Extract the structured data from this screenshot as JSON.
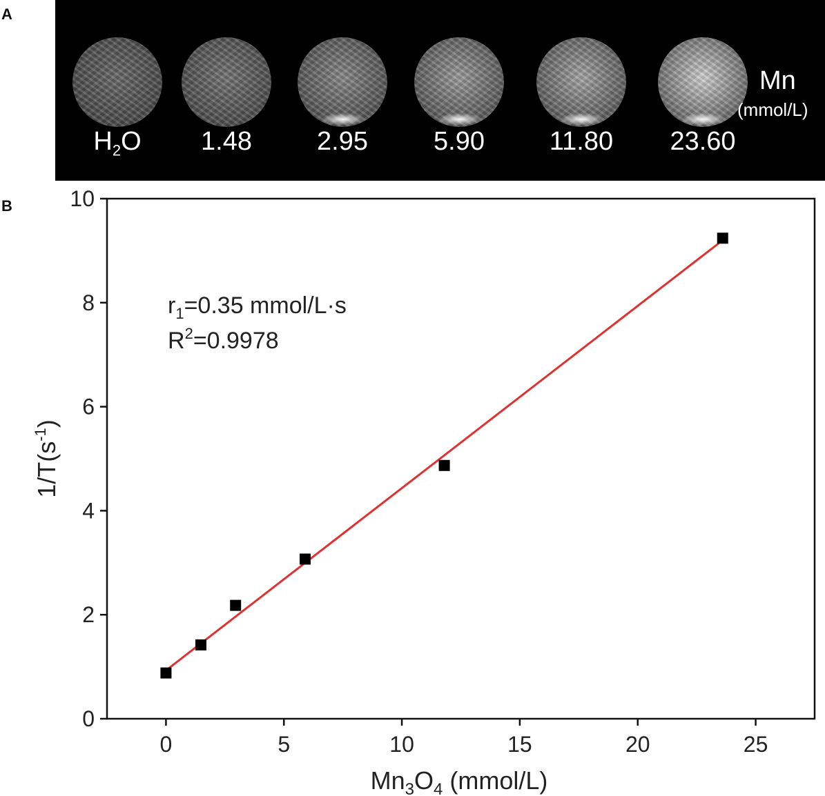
{
  "panel_a": {
    "letter": "A",
    "unit_symbol": "Mn",
    "unit_text": "(mmol/L)",
    "samples": [
      {
        "label_main": "H",
        "label_sub": "2",
        "label_tail": "O",
        "brightness": "#6a6a6a"
      },
      {
        "label_main": "1.48",
        "label_sub": "",
        "label_tail": "",
        "brightness": "#757575"
      },
      {
        "label_main": "2.95",
        "label_sub": "",
        "label_tail": "",
        "brightness": "#8a8a8a"
      },
      {
        "label_main": "5.90",
        "label_sub": "",
        "label_tail": "",
        "brightness": "#9d9d9d"
      },
      {
        "label_main": "11.80",
        "label_sub": "",
        "label_tail": "",
        "brightness": "#a8a8a8"
      },
      {
        "label_main": "23.60",
        "label_sub": "",
        "label_tail": "",
        "brightness": "#d4d4d4"
      }
    ]
  },
  "panel_b": {
    "letter": "B"
  },
  "chart_data": {
    "type": "scatter",
    "xlabel_main": "Mn",
    "xlabel_sub1": "3",
    "xlabel_mid": "O",
    "xlabel_sub2": "4",
    "xlabel_tail": " (mmol/L)",
    "ylabel_main": "1/T(s",
    "ylabel_sup": "-1",
    "ylabel_tail": ")",
    "xlim": [
      -2.5,
      27.5
    ],
    "ylim": [
      0,
      10
    ],
    "xticks": [
      0,
      5,
      10,
      15,
      20,
      25
    ],
    "yticks": [
      0,
      2,
      4,
      6,
      8,
      10
    ],
    "series": [
      {
        "x": [
          0,
          1.48,
          2.95,
          5.9,
          11.8,
          23.6
        ],
        "y": [
          0.88,
          1.42,
          2.18,
          3.07,
          4.87,
          9.24
        ],
        "marker": "square",
        "color": "#000000"
      }
    ],
    "fit_line": {
      "x": [
        0,
        23.6
      ],
      "y": [
        0.93,
        9.2
      ],
      "color": "#e03030"
    },
    "annotation": {
      "r1_main": "r",
      "r1_sub": "1",
      "r1_value": "=0.35 mmol/L·s",
      "r2_main": "R",
      "r2_sup": "2",
      "r2_value": "=0.9978"
    }
  }
}
